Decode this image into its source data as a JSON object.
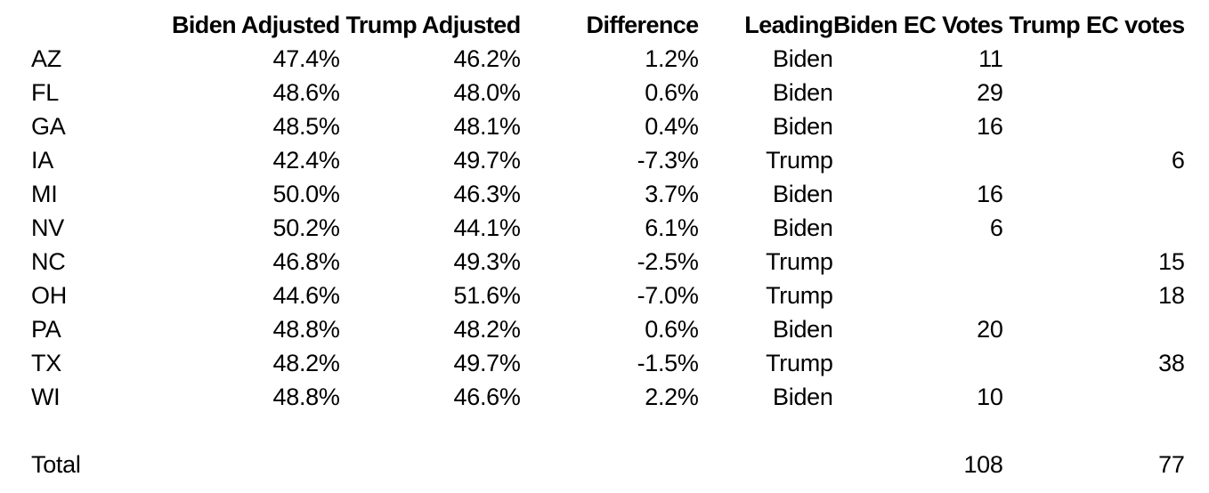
{
  "colors": {
    "text": "#000000",
    "background": "#ffffff"
  },
  "table": {
    "columns": [
      {
        "key": "state",
        "label": ""
      },
      {
        "key": "biden_adj",
        "label": "Biden Adjusted"
      },
      {
        "key": "trump_adj",
        "label": "Trump Adjusted"
      },
      {
        "key": "difference",
        "label": "Difference"
      },
      {
        "key": "leading",
        "label": "Leading"
      },
      {
        "key": "biden_ec",
        "label": "Biden EC Votes"
      },
      {
        "key": "trump_ec",
        "label": "Trump EC votes"
      }
    ],
    "rows": [
      {
        "state": "AZ",
        "biden_adj": "47.4%",
        "trump_adj": "46.2%",
        "difference": "1.2%",
        "leading": "Biden",
        "biden_ec": "11",
        "trump_ec": ""
      },
      {
        "state": "FL",
        "biden_adj": "48.6%",
        "trump_adj": "48.0%",
        "difference": "0.6%",
        "leading": "Biden",
        "biden_ec": "29",
        "trump_ec": ""
      },
      {
        "state": "GA",
        "biden_adj": "48.5%",
        "trump_adj": "48.1%",
        "difference": "0.4%",
        "leading": "Biden",
        "biden_ec": "16",
        "trump_ec": ""
      },
      {
        "state": "IA",
        "biden_adj": "42.4%",
        "trump_adj": "49.7%",
        "difference": "-7.3%",
        "leading": "Trump",
        "biden_ec": "",
        "trump_ec": "6"
      },
      {
        "state": "MI",
        "biden_adj": "50.0%",
        "trump_adj": "46.3%",
        "difference": "3.7%",
        "leading": "Biden",
        "biden_ec": "16",
        "trump_ec": ""
      },
      {
        "state": "NV",
        "biden_adj": "50.2%",
        "trump_adj": "44.1%",
        "difference": "6.1%",
        "leading": "Biden",
        "biden_ec": "6",
        "trump_ec": ""
      },
      {
        "state": "NC",
        "biden_adj": "46.8%",
        "trump_adj": "49.3%",
        "difference": "-2.5%",
        "leading": "Trump",
        "biden_ec": "",
        "trump_ec": "15"
      },
      {
        "state": "OH",
        "biden_adj": "44.6%",
        "trump_adj": "51.6%",
        "difference": "-7.0%",
        "leading": "Trump",
        "biden_ec": "",
        "trump_ec": "18"
      },
      {
        "state": "PA",
        "biden_adj": "48.8%",
        "trump_adj": "48.2%",
        "difference": "0.6%",
        "leading": "Biden",
        "biden_ec": "20",
        "trump_ec": ""
      },
      {
        "state": "TX",
        "biden_adj": "48.2%",
        "trump_adj": "49.7%",
        "difference": "-1.5%",
        "leading": "Trump",
        "biden_ec": "",
        "trump_ec": "38"
      },
      {
        "state": "WI",
        "biden_adj": "48.8%",
        "trump_adj": "46.6%",
        "difference": "2.2%",
        "leading": "Biden",
        "biden_ec": "10",
        "trump_ec": ""
      }
    ],
    "total": {
      "label": "Total",
      "biden_ec": "108",
      "trump_ec": "77"
    }
  },
  "chart_data": {
    "type": "table",
    "title": "",
    "columns": [
      "",
      "Biden Adjusted",
      "Trump Adjusted",
      "Difference",
      "Leading",
      "Biden EC Votes",
      "Trump EC votes"
    ],
    "rows": [
      [
        "AZ",
        "47.4%",
        "46.2%",
        "1.2%",
        "Biden",
        11,
        null
      ],
      [
        "FL",
        "48.6%",
        "48.0%",
        "0.6%",
        "Biden",
        29,
        null
      ],
      [
        "GA",
        "48.5%",
        "48.1%",
        "0.4%",
        "Biden",
        16,
        null
      ],
      [
        "IA",
        "42.4%",
        "49.7%",
        "-7.3%",
        "Trump",
        null,
        6
      ],
      [
        "MI",
        "50.0%",
        "46.3%",
        "3.7%",
        "Biden",
        16,
        null
      ],
      [
        "NV",
        "50.2%",
        "44.1%",
        "6.1%",
        "Biden",
        6,
        null
      ],
      [
        "NC",
        "46.8%",
        "49.3%",
        "-2.5%",
        "Trump",
        null,
        15
      ],
      [
        "OH",
        "44.6%",
        "51.6%",
        "-7.0%",
        "Trump",
        null,
        18
      ],
      [
        "PA",
        "48.8%",
        "48.2%",
        "0.6%",
        "Biden",
        20,
        null
      ],
      [
        "TX",
        "48.2%",
        "49.7%",
        "-1.5%",
        "Trump",
        null,
        38
      ],
      [
        "WI",
        "48.8%",
        "46.6%",
        "2.2%",
        "Biden",
        10,
        null
      ],
      [
        "Total",
        null,
        null,
        null,
        null,
        108,
        77
      ]
    ]
  }
}
